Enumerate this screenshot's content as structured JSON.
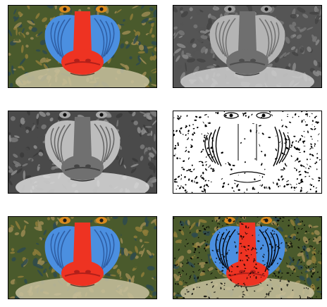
{
  "figure": {
    "panels": [
      {
        "subject": "mandrill-face",
        "rendering": "color"
      },
      {
        "subject": "mandrill-face",
        "rendering": "grayscale"
      },
      {
        "subject": "mandrill-face",
        "rendering": "grayscale-equalized"
      },
      {
        "subject": "mandrill-face",
        "rendering": "binary-edges"
      },
      {
        "subject": "mandrill-face",
        "rendering": "color"
      },
      {
        "subject": "mandrill-face",
        "rendering": "color-with-edges"
      }
    ],
    "colors": {
      "nose": "#ee3322",
      "cheeks": "#4b8fe0",
      "fur": "#8a7a3a",
      "eyes": "#d98a1e",
      "frame": "#000000",
      "background": "#ffffff"
    }
  }
}
